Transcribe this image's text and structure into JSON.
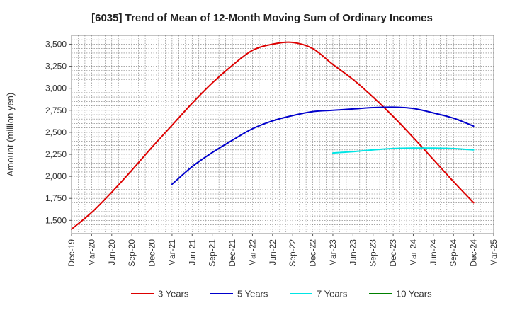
{
  "chart_data": {
    "type": "line",
    "title": "[6035]  Trend of Mean of 12-Month Moving Sum of Ordinary Incomes",
    "xlabel": "",
    "ylabel": "Amount (million yen)",
    "ylim": [
      1350,
      3600
    ],
    "yticks": [
      1500,
      1750,
      2000,
      2250,
      2500,
      2750,
      3000,
      3250,
      3500
    ],
    "ytick_labels": [
      "1,500",
      "1,750",
      "2,000",
      "2,250",
      "2,500",
      "2,750",
      "3,000",
      "3,250",
      "3,500"
    ],
    "categories": [
      "Dec-19",
      "Mar-20",
      "Jun-20",
      "Sep-20",
      "Dec-20",
      "Mar-21",
      "Jun-21",
      "Sep-21",
      "Dec-21",
      "Mar-22",
      "Jun-22",
      "Sep-22",
      "Dec-22",
      "Mar-23",
      "Jun-23",
      "Sep-23",
      "Dec-23",
      "Mar-24",
      "Jun-24",
      "Sep-24",
      "Dec-24",
      "Mar-25"
    ],
    "grid": true,
    "legend_position": "bottom",
    "series": [
      {
        "name": "3 Years",
        "color": "#dd0000",
        "values": [
          1400,
          1590,
          1820,
          2070,
          2330,
          2580,
          2830,
          3060,
          3260,
          3430,
          3500,
          3520,
          3450,
          3270,
          3100,
          2900,
          2680,
          2440,
          2190,
          1940,
          1700,
          null
        ]
      },
      {
        "name": "5 Years",
        "color": "#0000cc",
        "values": [
          null,
          null,
          null,
          null,
          null,
          1910,
          2110,
          2270,
          2410,
          2540,
          2630,
          2690,
          2735,
          2750,
          2765,
          2780,
          2785,
          2770,
          2720,
          2660,
          2570,
          null
        ]
      },
      {
        "name": "7 Years",
        "color": "#00e5e5",
        "values": [
          null,
          null,
          null,
          null,
          null,
          null,
          null,
          null,
          null,
          null,
          null,
          null,
          null,
          2265,
          2280,
          2300,
          2315,
          2320,
          2320,
          2315,
          2300,
          null
        ]
      },
      {
        "name": "10 Years",
        "color": "#008000",
        "values": [
          null,
          null,
          null,
          null,
          null,
          null,
          null,
          null,
          null,
          null,
          null,
          null,
          null,
          null,
          null,
          null,
          null,
          null,
          null,
          null,
          null,
          null
        ]
      }
    ]
  }
}
